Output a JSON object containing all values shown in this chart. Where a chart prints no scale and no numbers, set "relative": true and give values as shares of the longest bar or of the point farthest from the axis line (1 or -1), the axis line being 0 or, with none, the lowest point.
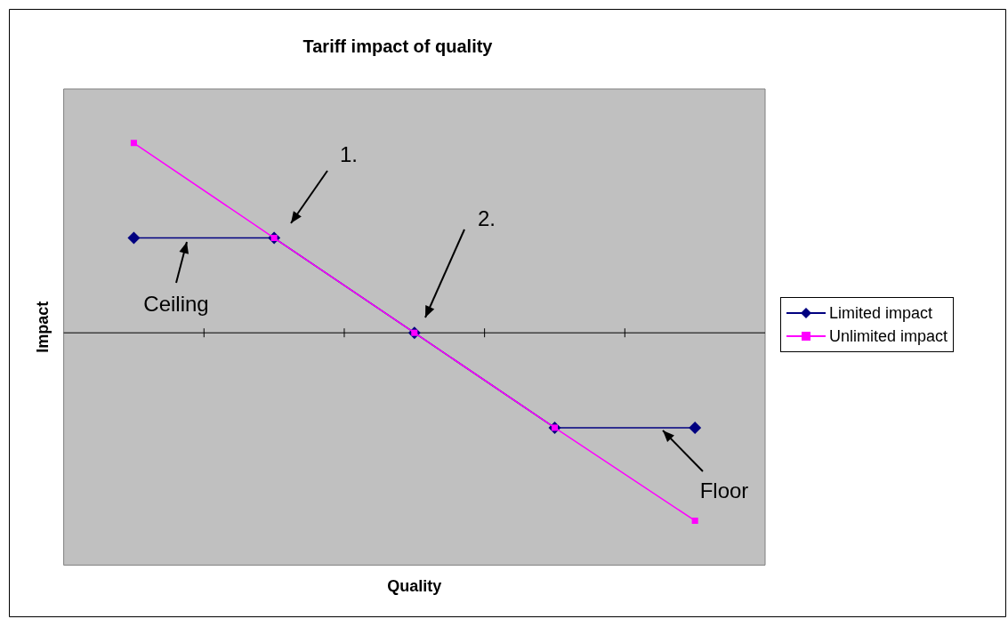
{
  "chart_data": {
    "type": "line",
    "title": "Tariff impact of quality",
    "xlabel": "Quality",
    "ylabel": "Impact",
    "relative": true,
    "categories": [
      null,
      null,
      null,
      null,
      null
    ],
    "series": [
      {
        "name": "Limited impact",
        "color": "#000080",
        "marker": "diamond",
        "values": [
          0.5,
          0.5,
          0,
          -0.5,
          -0.5
        ]
      },
      {
        "name": "Unlimited impact",
        "color": "#ff00ff",
        "marker": "square",
        "values": [
          1,
          0.5,
          0,
          -0.5,
          -0.99
        ]
      }
    ],
    "annotations": [
      "1.",
      "2.",
      "Ceiling",
      "Floor"
    ],
    "legend": "right",
    "grid": false
  }
}
